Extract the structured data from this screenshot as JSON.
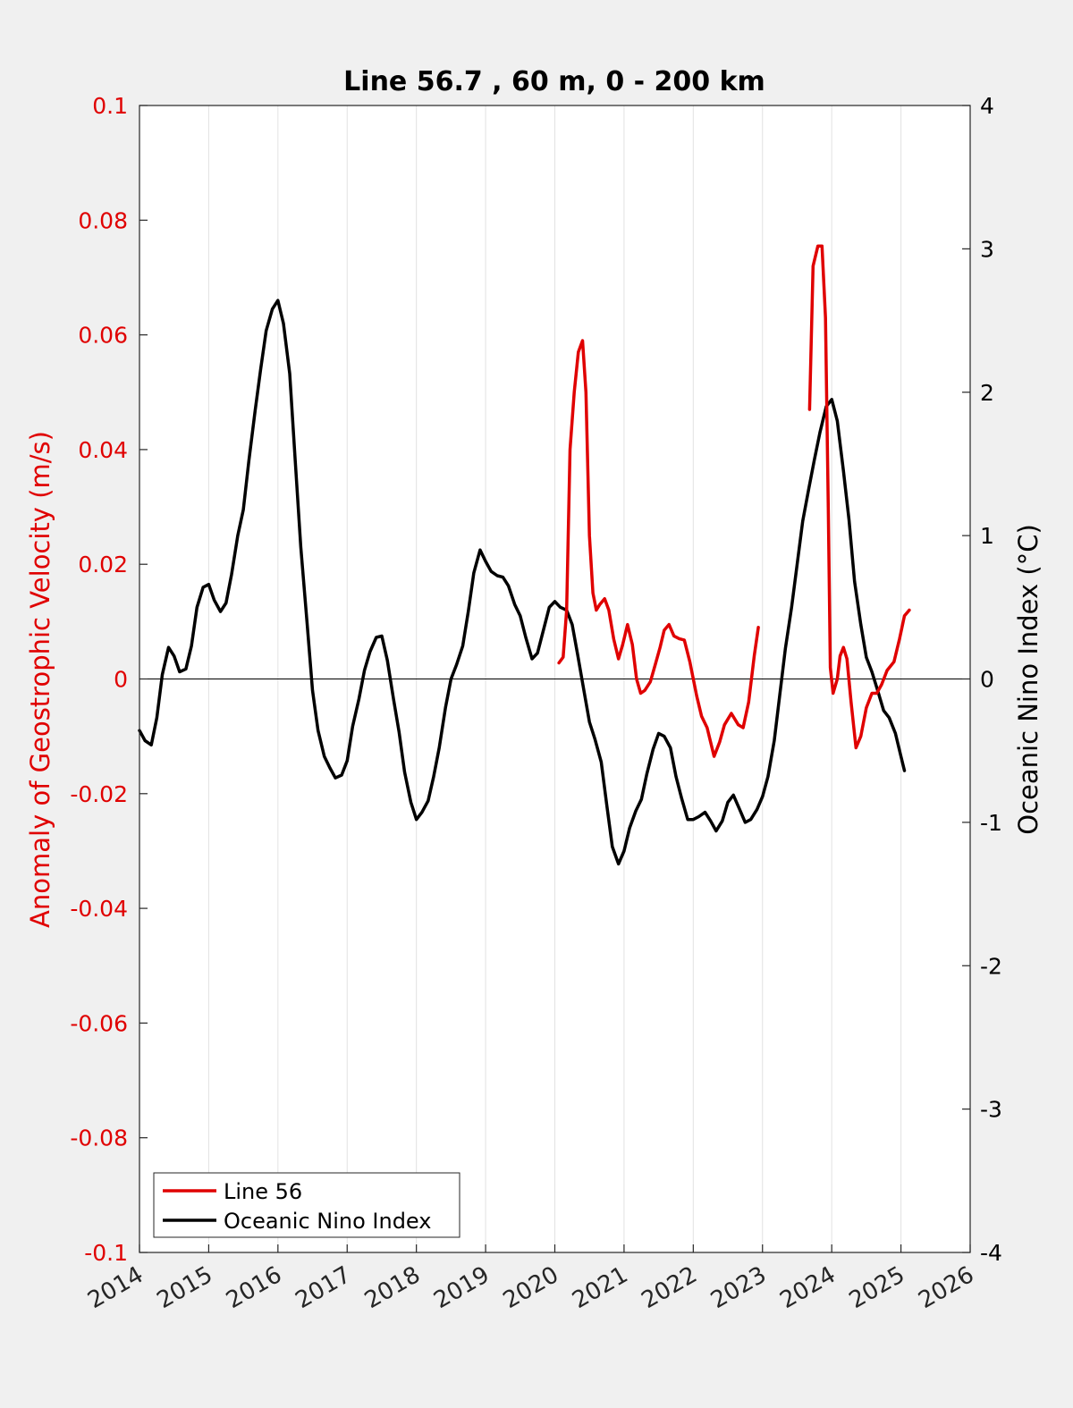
{
  "chart_data": {
    "type": "line",
    "title": "Line 56.7 , 60 m, 0 - 200 km",
    "xlim": [
      2014,
      2026
    ],
    "x_ticks": [
      "2014",
      "2015",
      "2016",
      "2017",
      "2018",
      "2019",
      "2020",
      "2021",
      "2022",
      "2023",
      "2024",
      "2025",
      "2026"
    ],
    "grid": "vertical lines at each year",
    "legend": {
      "placement": "bottom-left",
      "entries": [
        "Line 56",
        "Oceanic Nino Index"
      ]
    },
    "y_left": {
      "label": "Anomaly of Geostrophic Velocity (m/s)",
      "lim": [
        -0.1,
        0.1
      ],
      "ticks": [
        "0.1",
        "0.08",
        "0.06",
        "0.04",
        "0.02",
        "0",
        "-0.02",
        "-0.04",
        "-0.06",
        "-0.08",
        "-0.1"
      ],
      "color": "#e00000"
    },
    "y_right": {
      "label": "Oceanic Nino Index (°C)",
      "lim": [
        -4,
        4
      ],
      "ticks": [
        "4",
        "3",
        "2",
        "1",
        "0",
        "-1",
        "-2",
        "-3",
        "-4"
      ],
      "color": "#000000"
    },
    "series": [
      {
        "name": "Line 56",
        "axis": "left",
        "color": "#e00000",
        "segments": [
          [
            [
              2020.06,
              0.0028
            ],
            [
              2020.12,
              0.0038
            ],
            [
              2020.17,
              0.012
            ],
            [
              2020.22,
              0.04
            ],
            [
              2020.28,
              0.05
            ],
            [
              2020.34,
              0.057
            ],
            [
              2020.4,
              0.059
            ],
            [
              2020.45,
              0.05
            ],
            [
              2020.5,
              0.025
            ],
            [
              2020.55,
              0.015
            ],
            [
              2020.6,
              0.012
            ],
            [
              2020.65,
              0.013
            ],
            [
              2020.72,
              0.014
            ],
            [
              2020.78,
              0.012
            ],
            [
              2020.85,
              0.007
            ],
            [
              2020.92,
              0.0035
            ],
            [
              2020.98,
              0.006
            ],
            [
              2021.05,
              0.0095
            ],
            [
              2021.12,
              0.006
            ],
            [
              2021.18,
              0.0
            ],
            [
              2021.24,
              -0.0025
            ],
            [
              2021.3,
              -0.002
            ],
            [
              2021.38,
              -0.0005
            ],
            [
              2021.45,
              0.0025
            ],
            [
              2021.52,
              0.0055
            ],
            [
              2021.58,
              0.0085
            ],
            [
              2021.65,
              0.0095
            ],
            [
              2021.72,
              0.0075
            ],
            [
              2021.8,
              0.007
            ],
            [
              2021.87,
              0.0068
            ],
            [
              2021.95,
              0.003
            ],
            [
              2022.05,
              -0.003
            ],
            [
              2022.12,
              -0.0065
            ],
            [
              2022.2,
              -0.0085
            ],
            [
              2022.3,
              -0.0135
            ],
            [
              2022.38,
              -0.011
            ],
            [
              2022.45,
              -0.008
            ],
            [
              2022.55,
              -0.006
            ],
            [
              2022.65,
              -0.008
            ],
            [
              2022.72,
              -0.0085
            ],
            [
              2022.8,
              -0.004
            ],
            [
              2022.88,
              0.004
            ],
            [
              2022.94,
              0.009
            ]
          ],
          [
            [
              2023.68,
              0.047
            ],
            [
              2023.73,
              0.072
            ],
            [
              2023.8,
              0.0755
            ],
            [
              2023.86,
              0.0755
            ],
            [
              2023.91,
              0.063
            ],
            [
              2023.95,
              0.03
            ],
            [
              2023.98,
              0.002
            ],
            [
              2024.02,
              -0.0025
            ],
            [
              2024.08,
              0.0
            ],
            [
              2024.12,
              0.004
            ],
            [
              2024.17,
              0.0055
            ],
            [
              2024.22,
              0.0035
            ],
            [
              2024.28,
              -0.004
            ],
            [
              2024.35,
              -0.012
            ],
            [
              2024.42,
              -0.01
            ],
            [
              2024.5,
              -0.005
            ],
            [
              2024.58,
              -0.0025
            ],
            [
              2024.65,
              -0.0025
            ],
            [
              2024.72,
              -0.001
            ],
            [
              2024.8,
              0.0015
            ],
            [
              2024.9,
              0.003
            ],
            [
              2024.98,
              0.007
            ],
            [
              2025.05,
              0.011
            ],
            [
              2025.12,
              0.012
            ]
          ]
        ]
      },
      {
        "name": "Oceanic Nino Index",
        "axis": "right",
        "color": "#000000",
        "segments": [
          [
            [
              2014.0,
              -0.36
            ],
            [
              2014.08,
              -0.43
            ],
            [
              2014.17,
              -0.46
            ],
            [
              2014.25,
              -0.27
            ],
            [
              2014.33,
              0.03
            ],
            [
              2014.42,
              0.22
            ],
            [
              2014.5,
              0.16
            ],
            [
              2014.58,
              0.05
            ],
            [
              2014.67,
              0.07
            ],
            [
              2014.75,
              0.23
            ],
            [
              2014.83,
              0.5
            ],
            [
              2014.92,
              0.64
            ],
            [
              2015.0,
              0.66
            ],
            [
              2015.08,
              0.55
            ],
            [
              2015.17,
              0.47
            ],
            [
              2015.25,
              0.53
            ],
            [
              2015.33,
              0.73
            ],
            [
              2015.42,
              1.0
            ],
            [
              2015.5,
              1.18
            ],
            [
              2015.58,
              1.52
            ],
            [
              2015.67,
              1.87
            ],
            [
              2015.75,
              2.16
            ],
            [
              2015.83,
              2.43
            ],
            [
              2015.92,
              2.58
            ],
            [
              2016.0,
              2.64
            ],
            [
              2016.08,
              2.48
            ],
            [
              2016.17,
              2.13
            ],
            [
              2016.25,
              1.52
            ],
            [
              2016.33,
              0.92
            ],
            [
              2016.42,
              0.4
            ],
            [
              2016.5,
              -0.08
            ],
            [
              2016.58,
              -0.36
            ],
            [
              2016.67,
              -0.54
            ],
            [
              2016.75,
              -0.62
            ],
            [
              2016.83,
              -0.69
            ],
            [
              2016.92,
              -0.67
            ],
            [
              2017.0,
              -0.57
            ],
            [
              2017.08,
              -0.33
            ],
            [
              2017.17,
              -0.14
            ],
            [
              2017.25,
              0.06
            ],
            [
              2017.33,
              0.19
            ],
            [
              2017.42,
              0.29
            ],
            [
              2017.5,
              0.3
            ],
            [
              2017.58,
              0.13
            ],
            [
              2017.67,
              -0.14
            ],
            [
              2017.75,
              -0.37
            ],
            [
              2017.83,
              -0.65
            ],
            [
              2017.92,
              -0.86
            ],
            [
              2018.0,
              -0.98
            ],
            [
              2018.08,
              -0.93
            ],
            [
              2018.17,
              -0.85
            ],
            [
              2018.25,
              -0.68
            ],
            [
              2018.33,
              -0.48
            ],
            [
              2018.42,
              -0.2
            ],
            [
              2018.5,
              0.0
            ],
            [
              2018.58,
              0.1
            ],
            [
              2018.67,
              0.23
            ],
            [
              2018.75,
              0.47
            ],
            [
              2018.83,
              0.74
            ],
            [
              2018.92,
              0.9
            ],
            [
              2019.0,
              0.82
            ],
            [
              2019.08,
              0.75
            ],
            [
              2019.17,
              0.72
            ],
            [
              2019.25,
              0.71
            ],
            [
              2019.33,
              0.65
            ],
            [
              2019.42,
              0.52
            ],
            [
              2019.5,
              0.44
            ],
            [
              2019.58,
              0.29
            ],
            [
              2019.67,
              0.14
            ],
            [
              2019.75,
              0.18
            ],
            [
              2019.83,
              0.33
            ],
            [
              2019.92,
              0.5
            ],
            [
              2020.0,
              0.54
            ],
            [
              2020.08,
              0.5
            ],
            [
              2020.17,
              0.48
            ],
            [
              2020.25,
              0.38
            ],
            [
              2020.33,
              0.17
            ],
            [
              2020.42,
              -0.08
            ],
            [
              2020.5,
              -0.3
            ],
            [
              2020.58,
              -0.42
            ],
            [
              2020.67,
              -0.58
            ],
            [
              2020.75,
              -0.88
            ],
            [
              2020.83,
              -1.17
            ],
            [
              2020.92,
              -1.29
            ],
            [
              2021.0,
              -1.2
            ],
            [
              2021.08,
              -1.04
            ],
            [
              2021.17,
              -0.92
            ],
            [
              2021.25,
              -0.84
            ],
            [
              2021.33,
              -0.66
            ],
            [
              2021.42,
              -0.49
            ],
            [
              2021.5,
              -0.38
            ],
            [
              2021.58,
              -0.4
            ],
            [
              2021.67,
              -0.48
            ],
            [
              2021.75,
              -0.68
            ],
            [
              2021.83,
              -0.83
            ],
            [
              2021.92,
              -0.98
            ],
            [
              2022.0,
              -0.98
            ],
            [
              2022.08,
              -0.96
            ],
            [
              2022.17,
              -0.93
            ],
            [
              2022.25,
              -0.99
            ],
            [
              2022.33,
              -1.06
            ],
            [
              2022.42,
              -0.99
            ],
            [
              2022.5,
              -0.86
            ],
            [
              2022.58,
              -0.81
            ],
            [
              2022.67,
              -0.91
            ],
            [
              2022.75,
              -1.0
            ],
            [
              2022.83,
              -0.98
            ],
            [
              2022.92,
              -0.91
            ],
            [
              2023.0,
              -0.82
            ],
            [
              2023.08,
              -0.68
            ],
            [
              2023.17,
              -0.43
            ],
            [
              2023.25,
              -0.11
            ],
            [
              2023.33,
              0.21
            ],
            [
              2023.42,
              0.5
            ],
            [
              2023.5,
              0.8
            ],
            [
              2023.58,
              1.1
            ],
            [
              2023.67,
              1.33
            ],
            [
              2023.75,
              1.53
            ],
            [
              2023.83,
              1.72
            ],
            [
              2023.92,
              1.9
            ],
            [
              2024.0,
              1.95
            ],
            [
              2024.08,
              1.8
            ],
            [
              2024.17,
              1.45
            ],
            [
              2024.25,
              1.11
            ],
            [
              2024.33,
              0.68
            ],
            [
              2024.42,
              0.38
            ],
            [
              2024.5,
              0.15
            ],
            [
              2024.58,
              0.05
            ],
            [
              2024.67,
              -0.09
            ],
            [
              2024.75,
              -0.22
            ],
            [
              2024.83,
              -0.27
            ],
            [
              2024.92,
              -0.38
            ],
            [
              2025.0,
              -0.54
            ],
            [
              2025.05,
              -0.64
            ]
          ]
        ]
      }
    ]
  }
}
